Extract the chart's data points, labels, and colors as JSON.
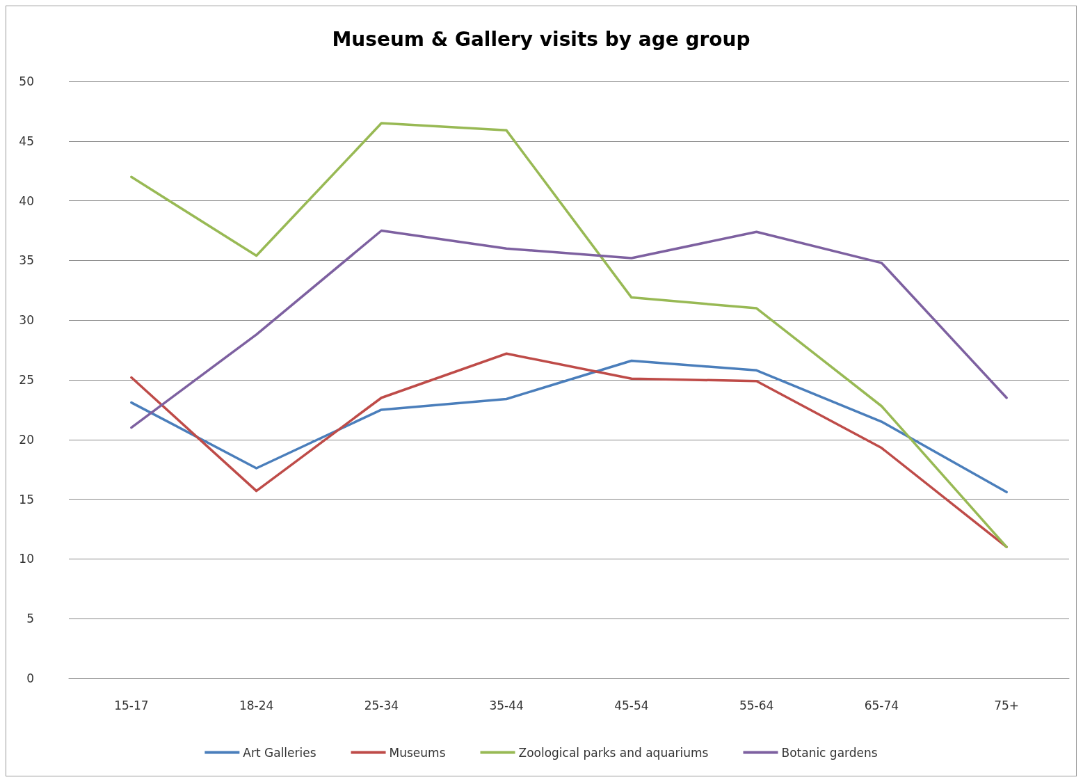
{
  "chart_data": {
    "type": "line",
    "title": "Museum & Gallery visits by age group",
    "categories": [
      "15-17",
      "18-24",
      "25-34",
      "35-44",
      "45-54",
      "55-64",
      "65-74",
      "75+"
    ],
    "series": [
      {
        "name": "Art Galleries",
        "color": "#4a7ebb",
        "values": [
          23.1,
          17.6,
          22.5,
          23.4,
          26.6,
          25.8,
          21.5,
          15.6
        ]
      },
      {
        "name": "Museums",
        "color": "#be4b48",
        "values": [
          25.2,
          15.7,
          23.5,
          27.2,
          25.1,
          24.9,
          19.3,
          11.0
        ]
      },
      {
        "name": "Zoological parks and aquariums",
        "color": "#98b954",
        "values": [
          42.0,
          35.4,
          46.5,
          45.9,
          31.9,
          31.0,
          22.8,
          11.0
        ]
      },
      {
        "name": "Botanic gardens",
        "color": "#7d60a0",
        "values": [
          21.0,
          28.8,
          37.5,
          36.0,
          35.2,
          37.4,
          34.8,
          23.5
        ]
      }
    ],
    "ylim": [
      0,
      50
    ],
    "yticks": [
      0,
      5,
      10,
      15,
      20,
      25,
      30,
      35,
      40,
      45,
      50
    ],
    "grid": "y",
    "legend": "bottom",
    "marker": "none",
    "line_style": "solid"
  }
}
